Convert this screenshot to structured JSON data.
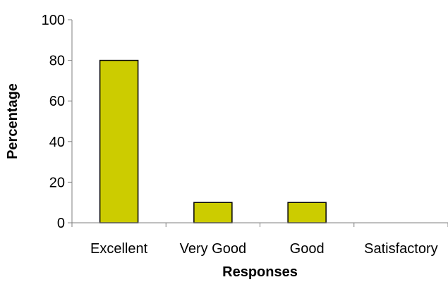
{
  "chart_data": {
    "type": "bar",
    "title": "",
    "xlabel": "Responses",
    "ylabel": "Percentage",
    "categories": [
      "Excellent",
      "Very Good",
      "Good",
      "Satisfactory"
    ],
    "values": [
      80,
      10,
      10,
      0
    ],
    "ylim": [
      0,
      100
    ],
    "yticks": [
      "0",
      "20",
      "40",
      "60",
      "80",
      "100"
    ],
    "grid": false,
    "legend": "none",
    "colors": {
      "bar_fill": "#cccc00",
      "bar_stroke": "#000000",
      "axis": "#7f7f7f"
    }
  }
}
